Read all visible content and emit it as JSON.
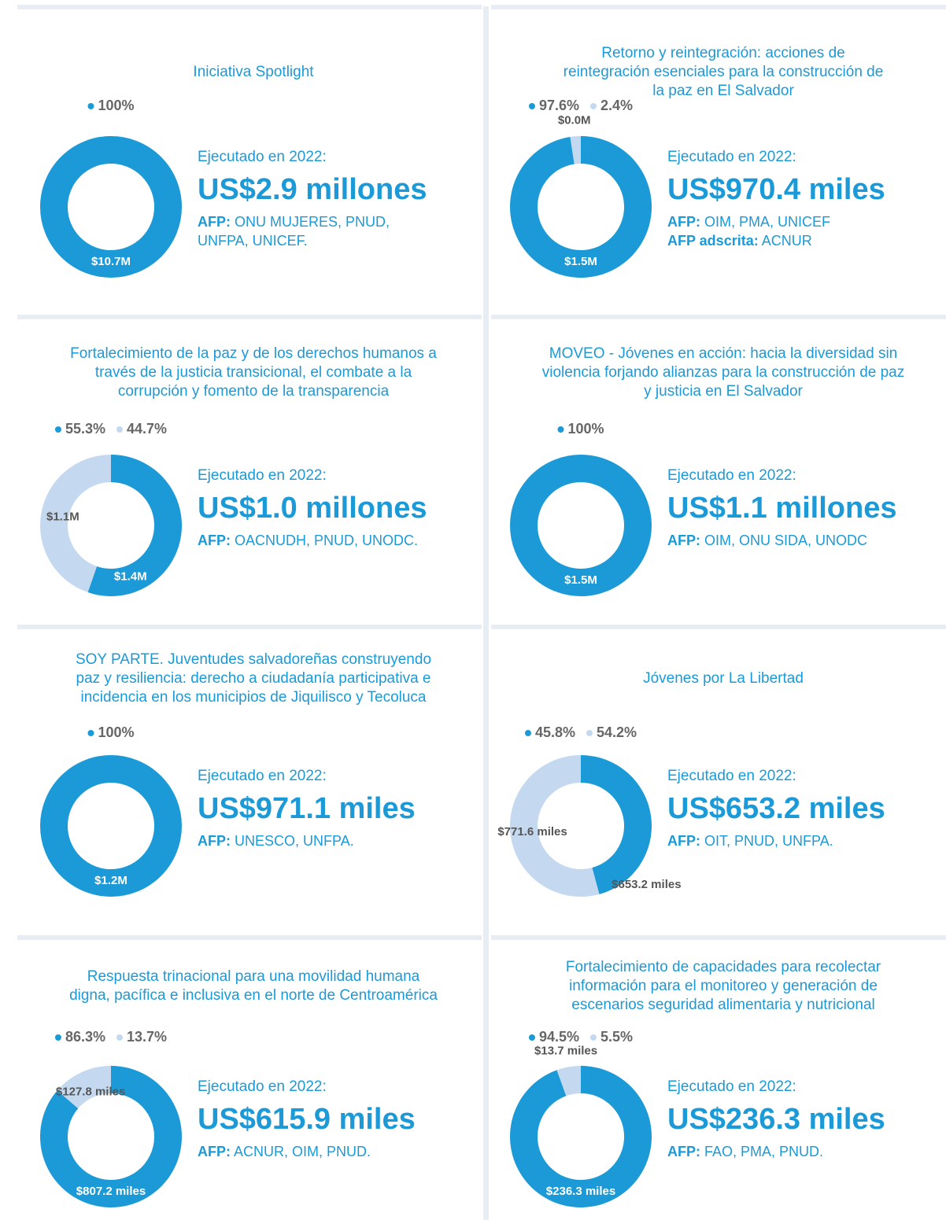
{
  "chart_data": [
    {
      "type": "pie",
      "title": [
        "Iniciativa Spotlight"
      ],
      "values": [
        100
      ],
      "value_labels": [
        "100%"
      ],
      "colors": [
        "#1b9ad7"
      ],
      "amounts": [
        10700000
      ],
      "amount_labels": [
        "$10.7M"
      ],
      "caption": "Ejecutado en 2022:",
      "total": "US$2.9 millones",
      "agencies": [
        {
          "label": "AFP:",
          "text": "ONU MUJERES, PNUD,"
        },
        {
          "text": "UNFPA, UNICEF."
        }
      ]
    },
    {
      "type": "pie",
      "title": [
        "Retorno y reintegración: acciones de",
        "reintegración esenciales para la construcción de",
        "la paz en El Salvador"
      ],
      "values": [
        97.6,
        2.4
      ],
      "value_labels": [
        "97.6%",
        "2.4%"
      ],
      "colors": [
        "#1b9ad7",
        "#c4d9ef"
      ],
      "amounts": [
        1500000,
        0
      ],
      "amount_labels": [
        "$1.5M",
        "$0.0M"
      ],
      "caption": "Ejecutado en 2022:",
      "total": "US$970.4 miles",
      "agencies": [
        {
          "label": "AFP:",
          "text": "OIM, PMA, UNICEF"
        },
        {
          "label": "AFP adscrita:",
          "text": "ACNUR"
        }
      ]
    },
    {
      "type": "pie",
      "title": [
        "Fortalecimiento de la paz y de los derechos humanos a",
        "través de la justicia transicional, el combate a la",
        "corrupción y fomento de la transparencia"
      ],
      "values": [
        55.3,
        44.7
      ],
      "value_labels": [
        "55.3%",
        "44.7%"
      ],
      "colors": [
        "#1b9ad7",
        "#c4d9ef"
      ],
      "amounts": [
        1400000,
        1100000
      ],
      "amount_labels": [
        "$1.4M",
        "$1.1M"
      ],
      "caption": "Ejecutado en 2022:",
      "total": "US$1.0 millones",
      "agencies": [
        {
          "label": "AFP:",
          "text": "OACNUDH, PNUD, UNODC."
        }
      ]
    },
    {
      "type": "pie",
      "title": [
        "MOVEO - Jóvenes en acción: hacia la diversidad sin",
        "violencia forjando alianzas para la construcción de paz",
        "y justicia en El Salvador"
      ],
      "values": [
        100
      ],
      "value_labels": [
        "100%"
      ],
      "colors": [
        "#1b9ad7"
      ],
      "amounts": [
        1500000
      ],
      "amount_labels": [
        "$1.5M"
      ],
      "caption": "Ejecutado en 2022:",
      "total": "US$1.1 millones",
      "agencies": [
        {
          "label": "AFP:",
          "text": "OIM, ONU SIDA, UNODC"
        }
      ]
    },
    {
      "type": "pie",
      "title": [
        "SOY PARTE. Juventudes salvadoreñas construyendo",
        "paz y resiliencia: derecho a ciudadanía participativa e",
        "incidencia en los municipios de Jiquilisco y Tecoluca"
      ],
      "values": [
        100
      ],
      "value_labels": [
        "100%"
      ],
      "colors": [
        "#1b9ad7"
      ],
      "amounts": [
        1200000
      ],
      "amount_labels": [
        "$1.2M"
      ],
      "caption": "Ejecutado en 2022:",
      "total": "US$971.1 miles",
      "agencies": [
        {
          "label": "AFP:",
          "text": "UNESCO, UNFPA."
        }
      ]
    },
    {
      "type": "pie",
      "title": [
        "Jóvenes por La Libertad"
      ],
      "values": [
        45.8,
        54.2
      ],
      "value_labels": [
        "45.8%",
        "54.2%"
      ],
      "colors": [
        "#1b9ad7",
        "#c4d9ef"
      ],
      "amounts": [
        653200,
        771600
      ],
      "amount_labels": [
        "$653.2 miles",
        "$771.6 miles"
      ],
      "caption": "Ejecutado en 2022:",
      "total": "US$653.2 miles",
      "agencies": [
        {
          "label": "AFP:",
          "text": "OIT, PNUD, UNFPA."
        }
      ]
    },
    {
      "type": "pie",
      "title": [
        "Respuesta trinacional para una movilidad humana",
        "digna, pacífica e inclusiva en el norte de Centroamérica"
      ],
      "values": [
        86.3,
        13.7
      ],
      "value_labels": [
        "86.3%",
        "13.7%"
      ],
      "colors": [
        "#1b9ad7",
        "#c4d9ef"
      ],
      "amounts": [
        807200,
        127800
      ],
      "amount_labels": [
        "$807.2 miles",
        "$127.8 miles"
      ],
      "caption": "Ejecutado en 2022:",
      "total": "US$615.9 miles",
      "agencies": [
        {
          "label": "AFP:",
          "text": "ACNUR, OIM, PNUD."
        }
      ]
    },
    {
      "type": "pie",
      "title": [
        "Fortalecimiento de capacidades para recolectar",
        "información para el monitoreo y generación de",
        "escenarios seguridad alimentaria y nutricional"
      ],
      "values": [
        94.5,
        5.5
      ],
      "value_labels": [
        "94.5%",
        "5.5%"
      ],
      "colors": [
        "#1b9ad7",
        "#c4d9ef"
      ],
      "amounts": [
        236300,
        13700
      ],
      "amount_labels": [
        "$236.3 miles",
        "$13.7 miles"
      ],
      "caption": "Ejecutado en 2022:",
      "total": "US$236.3 miles",
      "agencies": [
        {
          "label": "AFP:",
          "text": "FAO, PMA, PNUD."
        }
      ]
    }
  ]
}
